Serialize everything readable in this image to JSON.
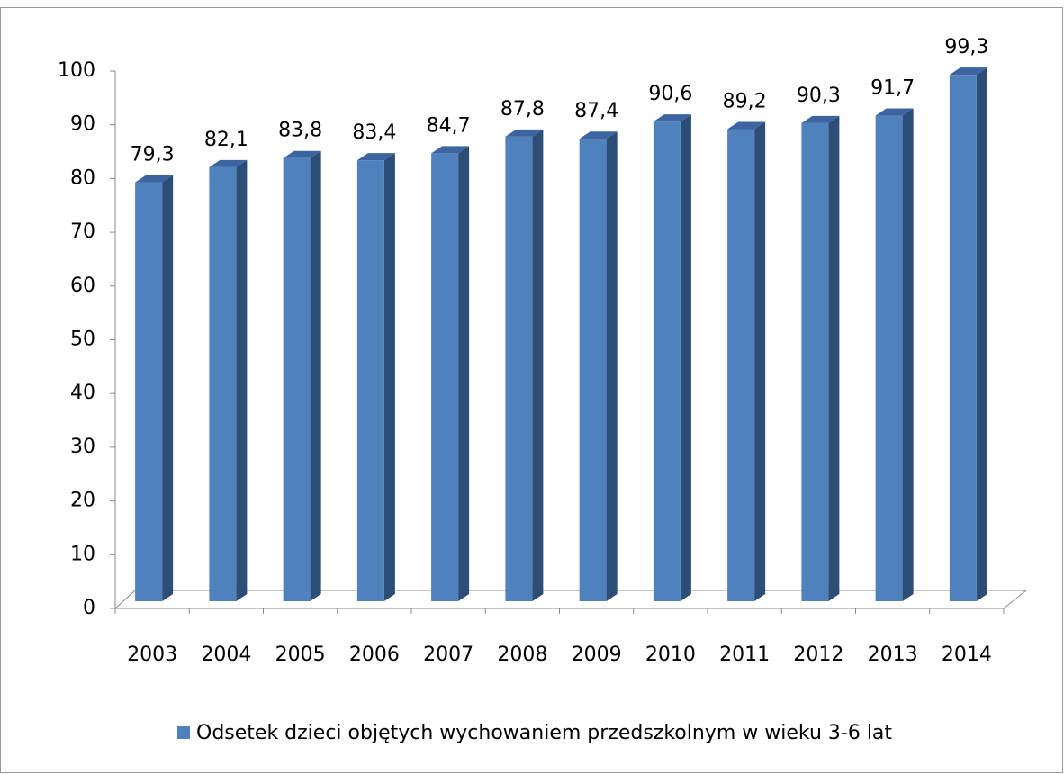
{
  "chart_data": {
    "type": "bar3d",
    "categories": [
      "2003",
      "2004",
      "2005",
      "2006",
      "2007",
      "2008",
      "2009",
      "2010",
      "2011",
      "2012",
      "2013",
      "2014"
    ],
    "series": [
      {
        "name": "Odsetek dzieci objętych wychowaniem przedszkolnym w wieku 3-6 lat",
        "color": "#4f81bd",
        "values": [
          79.3,
          82.1,
          83.8,
          83.4,
          84.7,
          87.8,
          87.4,
          90.6,
          89.2,
          90.3,
          91.7,
          99.3
        ],
        "value_labels": [
          "79,3",
          "82,1",
          "83,8",
          "83,4",
          "84,7",
          "87,8",
          "87,4",
          "90,6",
          "89,2",
          "90,3",
          "91,7",
          "99,3"
        ]
      }
    ],
    "ylim": [
      0,
      100
    ],
    "yticks": [
      0,
      10,
      20,
      30,
      40,
      50,
      60,
      70,
      80,
      90,
      100
    ],
    "grid": false,
    "legend": "bottom"
  }
}
